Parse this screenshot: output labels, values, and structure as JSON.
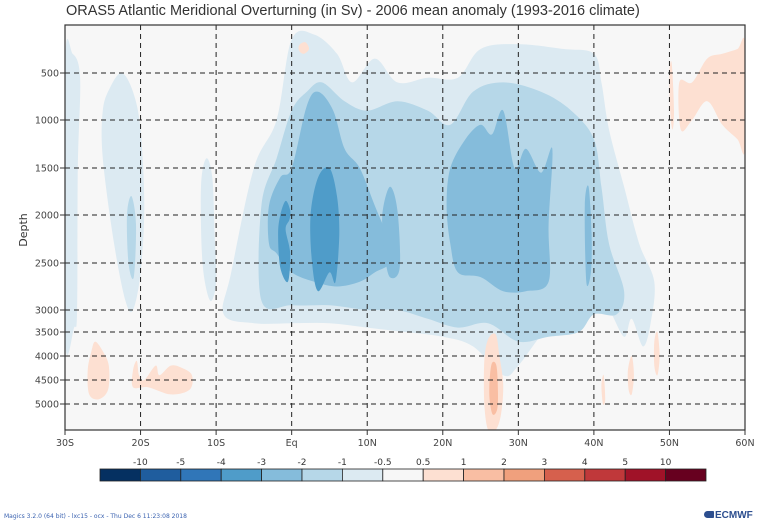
{
  "chart_data": {
    "type": "heatmap",
    "title": "ORAS5 Atlantic Meridional Overturning (in Sv) - 2006 mean anomaly (1993-2016 climate)",
    "xlabel": "",
    "ylabel": "Depth",
    "x_range": [
      -30,
      60
    ],
    "y_range": [
      0,
      5500
    ],
    "y_inverted": true,
    "x_ticks": [
      {
        "value": -30,
        "label": "30S"
      },
      {
        "value": -20,
        "label": "20S"
      },
      {
        "value": -10,
        "label": "10S"
      },
      {
        "value": 0,
        "label": "Eq"
      },
      {
        "value": 10,
        "label": "10N"
      },
      {
        "value": 20,
        "label": "20N"
      },
      {
        "value": 30,
        "label": "30N"
      },
      {
        "value": 40,
        "label": "40N"
      },
      {
        "value": 50,
        "label": "50N"
      },
      {
        "value": 60,
        "label": "60N"
      }
    ],
    "y_ticks": [
      {
        "value": 500,
        "label": "500"
      },
      {
        "value": 1000,
        "label": "1000"
      },
      {
        "value": 1500,
        "label": "1500"
      },
      {
        "value": 2000,
        "label": "2000"
      },
      {
        "value": 2500,
        "label": "2500"
      },
      {
        "value": 3000,
        "label": "3000"
      },
      {
        "value": 3500,
        "label": "3500"
      },
      {
        "value": 4000,
        "label": "4000"
      },
      {
        "value": 4500,
        "label": "4500"
      },
      {
        "value": 5000,
        "label": "5000"
      }
    ],
    "y_tick_screen_order_note": "depth axis is nonlinear below 3000 m",
    "grid": true,
    "grid_style": "dashed",
    "colorbar": {
      "placement": "bottom",
      "boundaries": [
        "-10",
        "-5",
        "-4",
        "-3",
        "-2",
        "-1",
        "-0.5",
        "0.5",
        "1",
        "2",
        "3",
        "4",
        "5",
        "10"
      ],
      "colors": [
        "#053061",
        "#1f5d9e",
        "#3076b8",
        "#4f9cc9",
        "#85bcdb",
        "#b6d7e8",
        "#dceaf2",
        "#f7f7f7",
        "#fde0d2",
        "#f9bea3",
        "#f0a07d",
        "#d6604d",
        "#c0383a",
        "#a01228",
        "#67001f"
      ]
    },
    "plot_background": "#f7f7f7",
    "regions": [
      {
        "level": -0.75,
        "desc": "broad weak negative band 30S-28S, 300-3500 m",
        "poly": [
          [
            -30,
            400
          ],
          [
            -29,
            300
          ],
          [
            -28,
            550
          ],
          [
            -28.3,
            1500
          ],
          [
            -28.4,
            3000
          ],
          [
            -28.8,
            3400
          ],
          [
            -30,
            3600
          ]
        ]
      },
      {
        "level": -0.75,
        "desc": "weak negative 25S-20S, 700-3000 m",
        "poly": [
          [
            -25,
            900
          ],
          [
            -24,
            650
          ],
          [
            -22.5,
            500
          ],
          [
            -21,
            700
          ],
          [
            -20,
            1100
          ],
          [
            -19.5,
            1900
          ],
          [
            -20,
            2600
          ],
          [
            -21,
            3000
          ],
          [
            -22,
            2900
          ],
          [
            -23.5,
            2300
          ],
          [
            -25,
            1400
          ]
        ]
      },
      {
        "level": -1.5,
        "desc": "negative -1..-2 near 21S, 1800-2600 m",
        "poly": [
          [
            -21.8,
            2000
          ],
          [
            -21.2,
            1800
          ],
          [
            -20.6,
            2100
          ],
          [
            -20.9,
            2650
          ],
          [
            -21.6,
            2500
          ]
        ]
      },
      {
        "level": -0.75,
        "desc": "weak negative 12S-10S, 1400-2500 m",
        "poly": [
          [
            -12,
            1700
          ],
          [
            -11.3,
            1400
          ],
          [
            -10.5,
            1600
          ],
          [
            -10.2,
            2200
          ],
          [
            -10,
            2700
          ],
          [
            -10.8,
            2900
          ],
          [
            -11.8,
            2500
          ]
        ]
      },
      {
        "level": -0.75,
        "desc": "main weak negative envelope Eq to 48N, 100-3800 m",
        "poly": [
          [
            -8,
            2600
          ],
          [
            -5,
            1500
          ],
          [
            -2,
            1000
          ],
          [
            0,
            150
          ],
          [
            3,
            100
          ],
          [
            6,
            300
          ],
          [
            8,
            600
          ],
          [
            11,
            350
          ],
          [
            14,
            600
          ],
          [
            18,
            550
          ],
          [
            22,
            550
          ],
          [
            25,
            250
          ],
          [
            30,
            200
          ],
          [
            36,
            250
          ],
          [
            40,
            300
          ],
          [
            41,
            600
          ],
          [
            42,
            1100
          ],
          [
            44,
            1700
          ],
          [
            46,
            2300
          ],
          [
            48,
            2700
          ],
          [
            47.5,
            3300
          ],
          [
            46.5,
            3800
          ],
          [
            45,
            3200
          ],
          [
            44,
            3600
          ],
          [
            42,
            3000
          ],
          [
            40,
            2900
          ],
          [
            38,
            3200
          ],
          [
            34,
            3400
          ],
          [
            30,
            4200
          ],
          [
            28,
            4400
          ],
          [
            24,
            3800
          ],
          [
            20,
            3600
          ],
          [
            15,
            3500
          ],
          [
            10,
            3400
          ],
          [
            5,
            3300
          ],
          [
            0,
            3300
          ],
          [
            -5,
            3300
          ],
          [
            -9,
            3100
          ]
        ]
      },
      {
        "level": -1.5,
        "desc": "moderate negative -1..-2 core band -4 to 43N",
        "poly": [
          [
            -4,
            1900
          ],
          [
            -2,
            1400
          ],
          [
            0,
            900
          ],
          [
            2,
            700
          ],
          [
            4,
            600
          ],
          [
            7,
            800
          ],
          [
            10,
            900
          ],
          [
            14,
            800
          ],
          [
            18,
            900
          ],
          [
            21,
            1050
          ],
          [
            24,
            700
          ],
          [
            28,
            600
          ],
          [
            33,
            700
          ],
          [
            37,
            900
          ],
          [
            40,
            1200
          ],
          [
            41,
            1700
          ],
          [
            42,
            2300
          ],
          [
            44,
            2800
          ],
          [
            43,
            3100
          ],
          [
            40,
            3100
          ],
          [
            38,
            3500
          ],
          [
            34,
            3600
          ],
          [
            30,
            3700
          ],
          [
            26,
            3300
          ],
          [
            22,
            3400
          ],
          [
            18,
            3200
          ],
          [
            14,
            3000
          ],
          [
            10,
            3000
          ],
          [
            5,
            2950
          ],
          [
            0,
            2950
          ],
          [
            -4,
            2900
          ]
        ]
      },
      {
        "level": -2.5,
        "desc": "negative -2..-3 western equatorial region",
        "poly": [
          [
            -3,
            1900
          ],
          [
            -1.5,
            1600
          ],
          [
            0,
            1500
          ],
          [
            2,
            850
          ],
          [
            3.5,
            700
          ],
          [
            5.5,
            900
          ],
          [
            7,
            1300
          ],
          [
            9,
            1500
          ],
          [
            11,
            1900
          ],
          [
            13,
            2300
          ],
          [
            13,
            2500
          ],
          [
            11,
            2600
          ],
          [
            9,
            2700
          ],
          [
            6,
            2750
          ],
          [
            3,
            2700
          ],
          [
            0,
            2600
          ],
          [
            -2,
            2400
          ],
          [
            -3,
            2300
          ]
        ]
      },
      {
        "level": -2.5,
        "desc": "negative -2..-3 block 20N-38N, 1100-2700 m",
        "poly": [
          [
            21,
            1500
          ],
          [
            23,
            1200
          ],
          [
            25,
            1050
          ],
          [
            26.5,
            1150
          ],
          [
            28,
            900
          ],
          [
            29.5,
            1500
          ],
          [
            31,
            1300
          ],
          [
            33,
            1550
          ],
          [
            34.5,
            1300
          ],
          [
            34,
            2100
          ],
          [
            34,
            2700
          ],
          [
            31,
            2800
          ],
          [
            28,
            2800
          ],
          [
            25,
            2650
          ],
          [
            22,
            2600
          ],
          [
            21,
            2300
          ],
          [
            20.5,
            1900
          ]
        ]
      },
      {
        "level": -2.5,
        "desc": "negative -2..-3 narrow bands 12N-20N near 2000 m",
        "poly": [
          [
            12,
            2000
          ],
          [
            13,
            1700
          ],
          [
            14,
            1950
          ],
          [
            14.3,
            2550
          ],
          [
            13,
            2650
          ],
          [
            12.3,
            2400
          ]
        ]
      },
      {
        "level": -2.5,
        "desc": "negative -2..-3 near 39N",
        "poly": [
          [
            38.8,
            1900
          ],
          [
            39.3,
            1700
          ],
          [
            39.7,
            2200
          ],
          [
            39.6,
            2600
          ],
          [
            39,
            2700
          ]
        ]
      },
      {
        "level": -3.5,
        "desc": "negative -3..-4 core near 4N",
        "poly": [
          [
            2.5,
            2000
          ],
          [
            3.5,
            1600
          ],
          [
            5,
            1500
          ],
          [
            6,
            1800
          ],
          [
            6.3,
            2200
          ],
          [
            5.8,
            2700
          ],
          [
            5,
            2600
          ],
          [
            3.5,
            2800
          ],
          [
            2.7,
            2500
          ]
        ]
      },
      {
        "level": -3.5,
        "desc": "negative -3..-4 small core near 1S",
        "poly": [
          [
            -1.5,
            2000
          ],
          [
            -0.8,
            1850
          ],
          [
            -0.2,
            1950
          ],
          [
            -0.3,
            2050
          ],
          [
            -0.8,
            2150
          ],
          [
            -0.2,
            2400
          ],
          [
            -0.5,
            2700
          ],
          [
            -1.5,
            2550
          ],
          [
            -1.8,
            2200
          ]
        ]
      },
      {
        "level": 0.75,
        "desc": "weak positive near 26S, 3600-4700 m",
        "poly": [
          [
            -27,
            4300
          ],
          [
            -26.5,
            3900
          ],
          [
            -26,
            3700
          ],
          [
            -25,
            3900
          ],
          [
            -24.2,
            4200
          ],
          [
            -24.3,
            4700
          ],
          [
            -25.5,
            4900
          ],
          [
            -26.8,
            4800
          ]
        ]
      },
      {
        "level": 0.75,
        "desc": "weak positive 21S-13S, 4100-4700 m",
        "poly": [
          [
            -21,
            4300
          ],
          [
            -20.5,
            4100
          ],
          [
            -20.2,
            4400
          ],
          [
            -19.5,
            4500
          ],
          [
            -18,
            4200
          ],
          [
            -17.5,
            4400
          ],
          [
            -16,
            4200
          ],
          [
            -14.5,
            4250
          ],
          [
            -13.2,
            4400
          ],
          [
            -13.5,
            4700
          ],
          [
            -16,
            4800
          ],
          [
            -19,
            4650
          ],
          [
            -21,
            4650
          ]
        ]
      },
      {
        "level": 0.75,
        "desc": "weak positive near 26N, 3500-5600 m",
        "poly": [
          [
            25.5,
            4100
          ],
          [
            26,
            3650
          ],
          [
            27,
            3550
          ],
          [
            27.5,
            4000
          ],
          [
            28,
            4600
          ],
          [
            27.7,
            5200
          ],
          [
            27,
            5600
          ],
          [
            26,
            5500
          ],
          [
            25.5,
            5000
          ]
        ]
      },
      {
        "level": 1.5,
        "desc": "positive 1..2 core near 26N, 4200-5000 m",
        "poly": [
          [
            26.2,
            4500
          ],
          [
            26.5,
            4150
          ],
          [
            27.1,
            4200
          ],
          [
            27.3,
            4700
          ],
          [
            27.2,
            5100
          ],
          [
            26.6,
            5200
          ],
          [
            26.2,
            4900
          ]
        ]
      },
      {
        "level": 0.75,
        "desc": "weak positive 43N-48N deep",
        "poly": [
          [
            41,
            4600
          ],
          [
            41.3,
            4400
          ],
          [
            41.5,
            4900
          ],
          [
            41.2,
            5000
          ]
        ]
      },
      {
        "level": 0.75,
        "desc": "weak positive near 44N",
        "poly": [
          [
            44.5,
            4300
          ],
          [
            45,
            4000
          ],
          [
            45.3,
            4400
          ],
          [
            45,
            4800
          ],
          [
            44.6,
            4700
          ]
        ]
      },
      {
        "level": 0.75,
        "desc": "weak positive near 48N",
        "poly": [
          [
            48,
            3700
          ],
          [
            48.4,
            3500
          ],
          [
            48.7,
            4000
          ],
          [
            48.4,
            4400
          ],
          [
            48,
            4200
          ]
        ]
      },
      {
        "level": 0.75,
        "desc": "weak positive 51N-60N, 100-1300 m",
        "poly": [
          [
            50,
            500
          ],
          [
            50.3,
            400
          ],
          [
            50.6,
            900
          ],
          [
            50.4,
            1100
          ],
          [
            50.1,
            900
          ]
        ]
      },
      {
        "level": 0.75,
        "desc": "weak positive 52N-60N upper",
        "poly": [
          [
            51.3,
            600
          ],
          [
            53,
            600
          ],
          [
            55,
            350
          ],
          [
            57,
            300
          ],
          [
            59,
            250
          ],
          [
            60,
            200
          ],
          [
            60,
            1300
          ],
          [
            59,
            1200
          ],
          [
            57,
            1050
          ],
          [
            55,
            800
          ],
          [
            53,
            1000
          ],
          [
            51.5,
            1100
          ]
        ]
      },
      {
        "level": 0.75,
        "desc": "small positive near surface at 1N",
        "poly": [
          [
            1,
            210
          ],
          [
            1.8,
            180
          ],
          [
            2.3,
            250
          ],
          [
            1.6,
            300
          ],
          [
            1,
            270
          ]
        ]
      }
    ]
  },
  "footer": {
    "left": "Magics 3.2.0 (64 bit) - lxc15 - ocx - Thu Dec  6 11:23:08 2018",
    "logo": "ECMWF"
  }
}
